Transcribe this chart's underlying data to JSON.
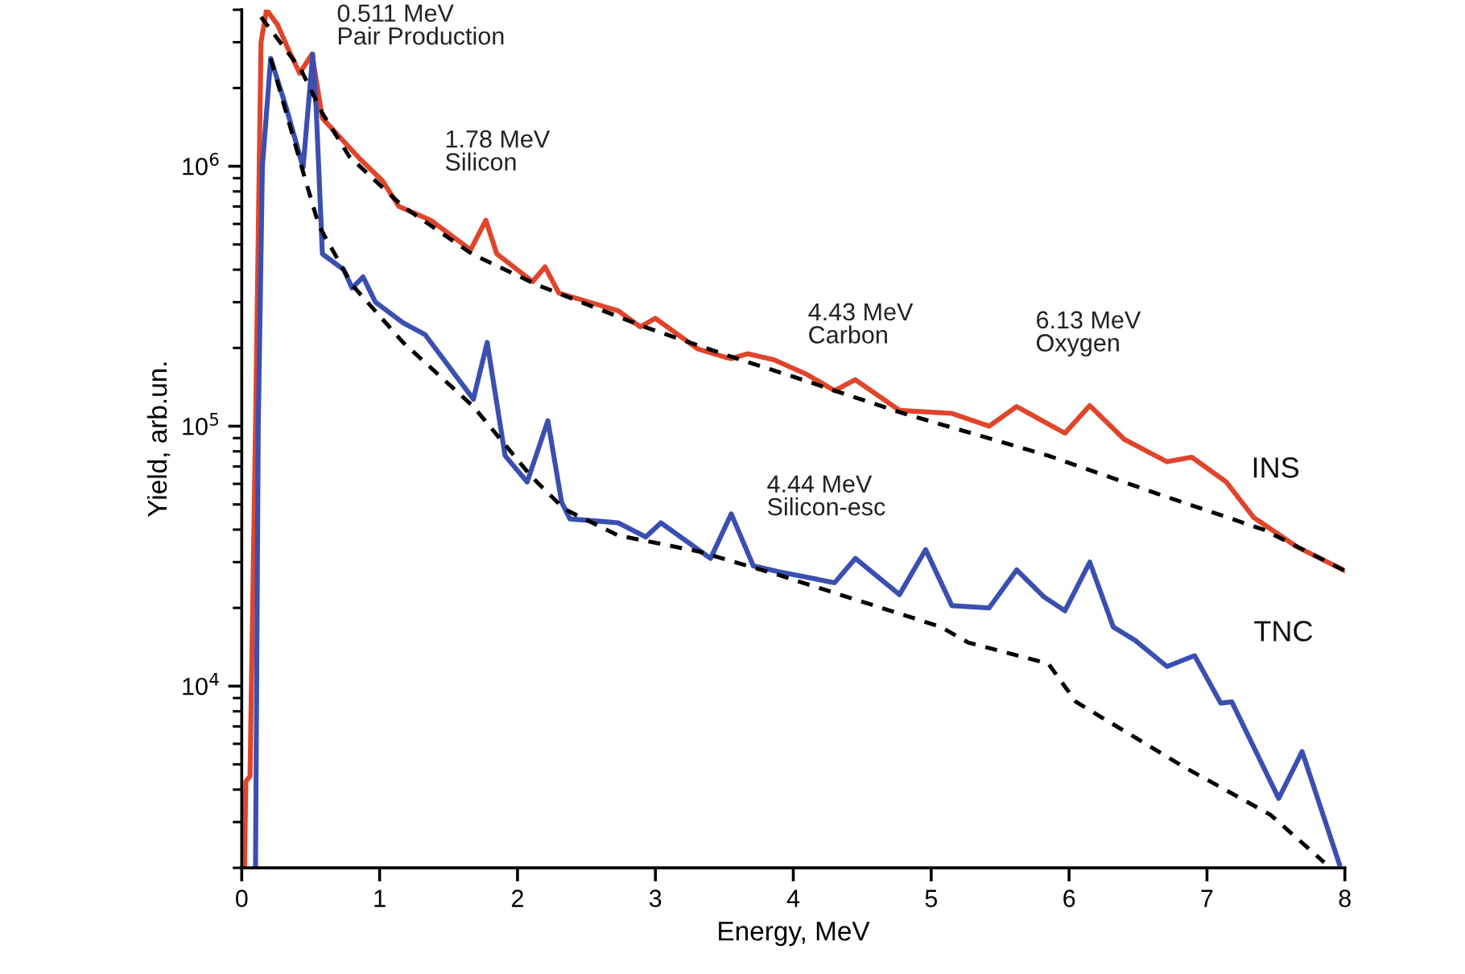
{
  "chart_data": {
    "type": "line",
    "xlabel": "Energy, MeV",
    "ylabel": "Yield, arb.un.",
    "log": "y",
    "grid": false,
    "legend": false,
    "marker": "none",
    "xlim": [
      0,
      8
    ],
    "xticks": [
      0,
      1,
      2,
      3,
      4,
      5,
      6,
      7,
      8
    ],
    "ylim": [
      2000,
      4000000
    ],
    "yticks": [
      {
        "value": 10000,
        "label": "10$^{4}$"
      },
      {
        "value": 100000,
        "label": "10$^{5}$"
      },
      {
        "value": 1000000,
        "label": "10$^{6}$"
      }
    ],
    "series": [
      {
        "name": "INS",
        "color": "#e0452b",
        "line_style": "solid",
        "x": [
          0.02,
          0.03,
          0.06,
          0.1,
          0.14,
          0.18,
          0.26,
          0.34,
          0.42,
          0.51,
          0.585,
          0.855,
          1.02,
          1.14,
          1.37,
          1.66,
          1.77,
          1.85,
          2.11,
          2.2,
          2.3,
          2.73,
          2.89,
          3.0,
          3.31,
          3.51,
          3.55,
          3.67,
          3.86,
          4.1,
          4.3,
          4.45,
          4.77,
          5.15,
          5.42,
          5.62,
          5.97,
          6.15,
          6.4,
          6.71,
          6.89,
          7.14,
          7.34,
          7.65,
          8.0
        ],
        "values": [
          2000,
          4300,
          4500,
          100000,
          3000000,
          4000000,
          3500000,
          2800000,
          2280000,
          2700000,
          1530000,
          1070000,
          880000,
          700000,
          620000,
          477000,
          620000,
          460000,
          360000,
          410000,
          325000,
          278000,
          241000,
          260000,
          198000,
          184000,
          182000,
          190000,
          180000,
          158000,
          137000,
          151000,
          115000,
          112000,
          100000,
          119000,
          94000,
          120000,
          89000,
          73000,
          76000,
          61000,
          44500,
          34400,
          27800
        ]
      },
      {
        "name": "TNC",
        "color": "#3a4fb0",
        "line_style": "solid",
        "x": [
          0.1,
          0.12,
          0.15,
          0.21,
          0.32,
          0.445,
          0.515,
          0.54,
          0.585,
          0.74,
          0.8,
          0.88,
          0.97,
          1.17,
          1.33,
          1.68,
          1.78,
          1.91,
          2.07,
          2.22,
          2.32,
          2.38,
          2.73,
          2.93,
          3.04,
          3.4,
          3.55,
          3.71,
          3.9,
          4.3,
          4.45,
          4.77,
          4.96,
          5.15,
          5.42,
          5.62,
          5.82,
          5.97,
          6.15,
          6.32,
          6.48,
          6.71,
          6.91,
          7.1,
          7.18,
          7.52,
          7.69,
          7.96
        ],
        "values": [
          2000,
          100000,
          1000000,
          2600000,
          1700000,
          990000,
          2700000,
          1670000,
          460000,
          400000,
          340000,
          375000,
          300000,
          250000,
          225000,
          127000,
          210000,
          77000,
          61000,
          105000,
          51000,
          44000,
          42500,
          37500,
          42500,
          31000,
          46000,
          29000,
          27500,
          25000,
          31000,
          22500,
          33500,
          20400,
          20000,
          28000,
          22000,
          19500,
          30000,
          16900,
          15000,
          11900,
          13100,
          8600,
          8700,
          3700,
          5600,
          2070
        ]
      },
      {
        "color": "#000000",
        "line_style": "dashed",
        "x": [
          0.14,
          0.43,
          0.585,
          0.78,
          1.17,
          1.67,
          2.14,
          2.93,
          3.55,
          4.1,
          4.3,
          4.8,
          5.85,
          6.64,
          7.41,
          8.0
        ],
        "values": [
          3750000,
          2350000,
          1600000,
          1090000,
          700000,
          460000,
          350000,
          240000,
          185000,
          149000,
          137000,
          112000,
          77000,
          55000,
          40000,
          27800
        ]
      },
      {
        "color": "#000000",
        "line_style": "dashed",
        "x": [
          0.21,
          0.445,
          0.56,
          0.8,
          1.17,
          1.68,
          2.07,
          2.14,
          2.34,
          2.73,
          3.31,
          3.9,
          5.07,
          5.27,
          5.85,
          6.05,
          6.83,
          7.46,
          7.85
        ],
        "values": [
          2600000,
          950000,
          590000,
          350000,
          210000,
          119000,
          67000,
          61000,
          48000,
          38000,
          33000,
          26700,
          16900,
          14700,
          12200,
          8700,
          4900,
          3200,
          2100
        ]
      }
    ],
    "annotations": [
      {
        "text": "0.511 MeV\nPair Production",
        "x": 0.511,
        "y": 2700000
      },
      {
        "text": "1.78 MeV\nSilicon",
        "x": 1.78,
        "y": 620000
      },
      {
        "text": "4.43 MeV\nCarbon",
        "x": 4.43,
        "y": 151000
      },
      {
        "text": "6.13 MeV\nOxygen",
        "x": 6.13,
        "y": 120000
      },
      {
        "text": "4.44 MeV\nSilicon-esc",
        "x": 4.44,
        "y": 31000
      }
    ]
  }
}
